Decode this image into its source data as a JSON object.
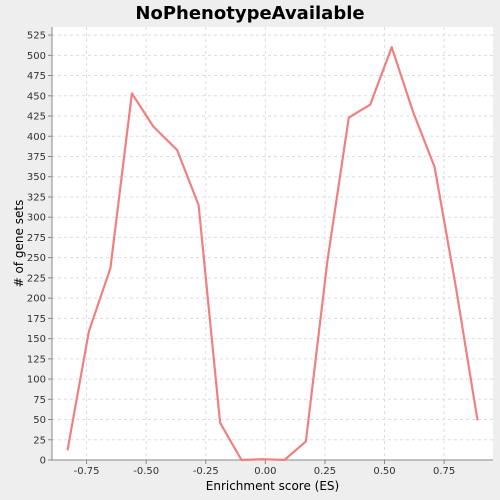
{
  "chart_data": {
    "type": "line",
    "title": "NoPhenotypeAvailable",
    "xlabel": "Enrichment score (ES)",
    "ylabel": "# of gene sets",
    "xlim": [
      -0.895,
      0.955
    ],
    "ylim": [
      0,
      535
    ],
    "x_ticks": [
      -0.75,
      -0.5,
      -0.25,
      0.0,
      0.25,
      0.5,
      0.75
    ],
    "x_tick_labels": [
      "-0.75",
      "-0.50",
      "-0.25",
      "0.00",
      "0.25",
      "0.50",
      "0.75"
    ],
    "y_ticks": [
      0,
      25,
      50,
      75,
      100,
      125,
      150,
      175,
      200,
      225,
      250,
      275,
      300,
      325,
      350,
      375,
      400,
      425,
      450,
      475,
      500,
      525
    ],
    "y_tick_labels": [
      "0",
      "25",
      "50",
      "75",
      "100",
      "125",
      "150",
      "175",
      "200",
      "225",
      "250",
      "275",
      "300",
      "325",
      "350",
      "375",
      "400",
      "425",
      "450",
      "475",
      "500",
      "525"
    ],
    "grid": true,
    "series": [
      {
        "color": "#f08080",
        "x": [
          -0.83,
          -0.74,
          -0.65,
          -0.56,
          -0.47,
          -0.37,
          -0.28,
          -0.19,
          -0.1,
          -0.01,
          0.08,
          0.17,
          0.26,
          0.35,
          0.44,
          0.53,
          0.62,
          0.71,
          0.8,
          0.89
        ],
        "y": [
          12,
          159,
          237,
          453,
          412,
          383,
          315,
          46,
          0,
          1,
          0,
          23,
          245,
          423,
          439,
          510,
          430,
          362,
          212,
          49
        ]
      }
    ]
  },
  "colors": {
    "background": "#eeeeee",
    "plot_background": "#ffffff",
    "grid": "#dddddd",
    "axis": "#888888",
    "line": "#f08080"
  }
}
